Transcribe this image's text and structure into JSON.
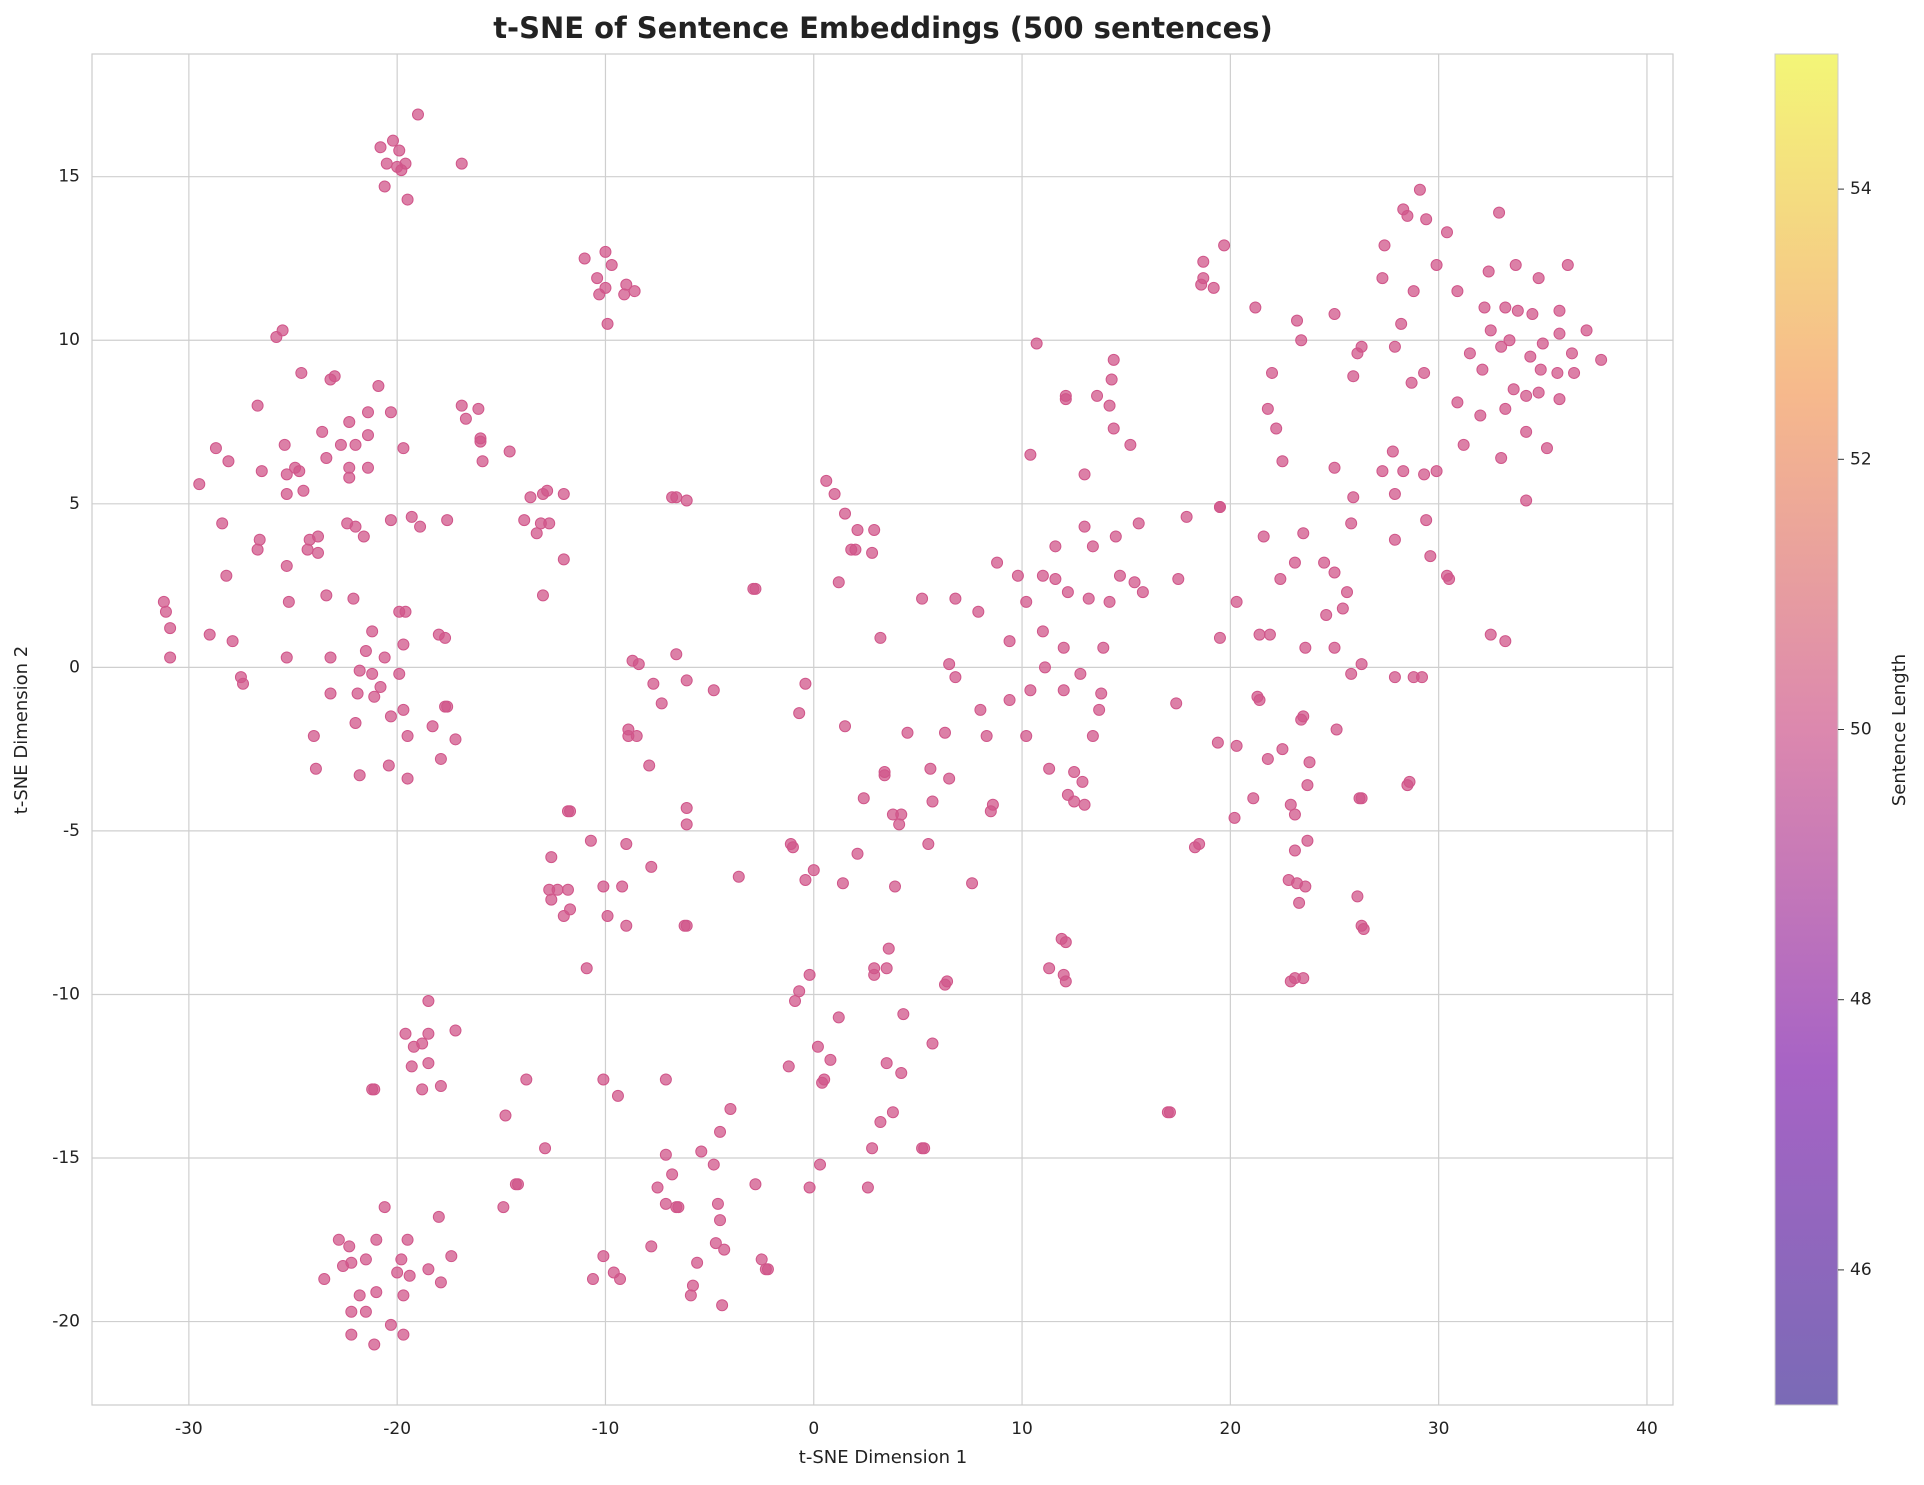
{
  "chart_data": {
    "type": "scatter",
    "title": "t-SNE of Sentence Embeddings (500 sentences)",
    "x_label": "t-SNE Dimension 1",
    "y_label": "t-SNE Dimension 2",
    "color": "#d0568a",
    "grid": true,
    "xlim": [
      -34.65,
      41.25
    ],
    "ylim": [
      -22.55,
      18.75
    ],
    "xticks": [
      -30,
      -20,
      -10,
      0,
      10,
      20,
      30,
      40
    ],
    "yticks": [
      -20,
      -15,
      -10,
      -5,
      0,
      5,
      10,
      15
    ],
    "colorbar": {
      "label": "Sentence Length",
      "lim": [
        45,
        55
      ],
      "ticks": [
        46,
        48,
        50,
        52,
        54
      ]
    },
    "x": [
      -20.8,
      -20.2,
      -19.0,
      -20.5,
      -19.9,
      -20.0,
      -19.6,
      -20.6,
      -19.5,
      -16.9,
      -19.8,
      -11.0,
      -10.4,
      -10.0,
      -9.7,
      -10.3,
      -10.0,
      -9.0,
      -9.1,
      -8.6,
      -9.9,
      -25.5,
      -25.8,
      -24.6,
      -23.0,
      -23.2,
      -20.9,
      -26.7,
      -20.3,
      -21.4,
      -22.3,
      -23.6,
      -21.4,
      -25.4,
      -22.7,
      -22.0,
      -19.7,
      -28.7,
      -28.1,
      -23.4,
      -22.3,
      -21.4,
      -26.5,
      -24.9,
      -24.7,
      -25.3,
      -22.3,
      -29.5,
      -24.5,
      -25.3,
      -19.3,
      -20.3,
      -17.6,
      -18.9,
      -22.4,
      -22.0,
      -28.4,
      -21.6,
      -23.8,
      -24.2,
      -26.6,
      -24.3,
      -26.7,
      -23.8,
      -25.3,
      -28.2,
      -23.4,
      -22.1,
      -25.2,
      -19.9,
      -19.6,
      -31.2,
      -31.1,
      -30.9,
      -29.0,
      -27.9,
      -21.2,
      -18.0,
      -17.7,
      -19.7,
      -21.5,
      -30.9,
      -25.3,
      -23.2,
      -20.6,
      -21.8,
      -21.2,
      -19.9,
      -27.5,
      -27.4,
      -20.8,
      -21.9,
      -21.1,
      -23.2,
      -19.7,
      -17.6,
      -17.7,
      -20.3,
      -22.0,
      -18.3,
      -24.0,
      -19.5,
      -17.2,
      -17.9,
      -20.4,
      -23.9,
      -21.8,
      -19.5,
      -16.9,
      -16.7,
      -16.1,
      -16.0,
      -16.0,
      -15.9,
      -14.6,
      -13.6,
      -13.0,
      -12.8,
      -12.0,
      -13.9,
      -13.1,
      -12.7,
      -13.3,
      -12.0,
      -13.0,
      -6.8,
      -6.6,
      -6.1,
      -2.8,
      -2.9,
      0.6,
      1.0,
      1.5,
      2.1,
      2.9,
      2.0,
      1.8,
      2.8,
      1.2,
      3.2,
      -8.7,
      -8.4,
      -6.6,
      -7.7,
      -6.1,
      -0.4,
      -4.8,
      -7.3,
      -0.7,
      1.5,
      -8.9,
      -8.5,
      -8.9,
      -7.9,
      3.4,
      3.4,
      2.4,
      -6.1,
      -11.8,
      -11.7,
      -6.1,
      3.8,
      4.2,
      4.1,
      -10.7,
      -9.0,
      -1.1,
      -1.0,
      -12.6,
      2.1,
      -7.8,
      0,
      -0.4,
      -3.6,
      1.4,
      -10.1,
      -9.2,
      -11.8,
      -12.7,
      -12.3,
      -12.6,
      3.9,
      -11.7,
      -12.0,
      -9.9,
      -9.0,
      -6.1,
      -6.2,
      -10.9,
      3.6,
      3.5,
      2.9,
      2.9,
      -0.2,
      -0.7,
      -0.9,
      1.2,
      4.3,
      5.7,
      0.2,
      0.8,
      -1.2,
      3.5,
      4.2,
      0.4,
      0.5,
      3.8,
      3.2,
      -4.0,
      -4.5,
      2.8,
      5.2,
      5.3,
      -5.4,
      -7.1,
      -4.8,
      0.3,
      -6.8,
      2.6,
      -0.2,
      -2.8,
      -7.5,
      -6.6,
      -6.5,
      -7.1,
      -4.6,
      -4.5,
      -7.8,
      -4.7,
      -4.3,
      -5.6,
      -2.5,
      -2.3,
      -2.2,
      -5.8,
      -5.9,
      -4.4,
      -9.6,
      -9.3,
      -10.6,
      -10.1,
      -10.1,
      -9.4,
      -7.1,
      -13.8,
      -14.8,
      -12.9,
      -14.3,
      -14.2,
      -14.9,
      -18.5,
      -19.6,
      -18.5,
      -17.2,
      -19.2,
      -18.8,
      -19.3,
      -18.5,
      -21.2,
      -21.1,
      -18.8,
      -17.9,
      -18.0,
      -20.6,
      -22.3,
      -22.8,
      -21.0,
      -19.5,
      -17.4,
      -19.8,
      -21.5,
      -22.6,
      -22.2,
      -18.5,
      -20.0,
      -19.4,
      -23.5,
      -17.9,
      -21.8,
      -19.7,
      -21.0,
      -22.2,
      -21.5,
      -20.3,
      -22.2,
      -19.7,
      -21.1,
      10.7,
      12.1,
      12.1,
      14.4,
      14.3,
      14.2,
      13.6,
      14.4,
      15.2,
      10.4,
      13.0,
      15.6,
      14.5,
      13.0,
      17.9,
      19.5,
      13.4,
      11.6,
      8.8,
      9.8,
      11.0,
      11.6,
      14.7,
      15.4,
      15.8,
      12.2,
      13.2,
      5.2,
      6.8,
      7.9,
      10.2,
      14.2,
      17.5,
      11.0,
      9.4,
      12.0,
      13.9,
      11.1,
      12.8,
      6.5,
      6.8,
      10.4,
      12.0,
      13.8,
      9.4,
      8.0,
      13.7,
      4.5,
      6.3,
      8.3,
      10.2,
      13.4,
      11.3,
      12.5,
      12.9,
      5.6,
      6.5,
      12.2,
      12.5,
      13.0,
      5.7,
      8.6,
      8.5,
      5.5,
      7.6,
      11.9,
      12.1,
      6.4,
      6.3,
      11.3,
      12.0,
      12.1,
      17.0,
      17.1,
      18.7,
      19.7,
      18.7,
      18.6,
      19.2,
      21.2,
      23.2,
      25.0,
      23.4,
      22.0,
      21.8,
      22.2,
      22.5,
      19.5,
      21.6,
      23.5,
      24.5,
      23.1,
      22.4,
      25.0,
      25.6,
      20.3,
      24.6,
      25.4,
      21.4,
      21.9,
      19.5,
      23.6,
      25.0,
      26.3,
      25.8,
      17.4,
      21.3,
      21.4,
      23.5,
      23.4,
      25.1,
      19.4,
      20.3,
      22.5,
      21.8,
      23.8,
      23.7,
      21.1,
      22.9,
      23.1,
      20.2,
      26.2,
      26.3,
      23.7,
      18.5,
      18.3,
      23.1,
      22.8,
      23.2,
      23.6,
      23.3,
      26.1,
      26.3,
      26.4,
      22.9,
      23.1,
      23.5,
      29.1,
      28.3,
      28.5,
      29.4,
      32.9,
      30.4,
      27.4,
      29.9,
      32.4,
      33.7,
      34.8,
      36.2,
      27.3,
      28.8,
      30.9,
      32.2,
      33.2,
      33.8,
      34.5,
      35.8,
      28.2,
      32.5,
      35.8,
      37.1,
      33.4,
      35.0,
      27.9,
      26.1,
      26.3,
      31.5,
      33.0,
      34.4,
      36.4,
      37.8,
      29.3,
      25.9,
      32.1,
      34.9,
      35.7,
      36.5,
      28.7,
      33.6,
      34.2,
      34.8,
      35.8,
      30.9,
      33.2,
      32.0,
      34.2,
      31.2,
      35.2,
      27.8,
      33.0,
      27.3,
      28.3,
      29.3,
      29.9,
      25.0,
      27.9,
      25.9,
      34.2,
      29.4,
      25.8,
      27.9,
      29.6,
      30.4,
      30.5,
      32.5,
      33.2,
      28.8,
      29.2,
      27.9,
      28.6,
      28.5
    ],
    "values": [
      15.9,
      16.1,
      16.9,
      15.4,
      15.8,
      15.3,
      15.4,
      14.7,
      14.3,
      15.4,
      15.2,
      12.5,
      11.9,
      12.7,
      12.3,
      11.4,
      11.6,
      11.7,
      11.4,
      11.5,
      10.5,
      10.3,
      10.1,
      9.0,
      8.9,
      8.8,
      8.6,
      8.0,
      7.8,
      7.8,
      7.5,
      7.2,
      7.1,
      6.8,
      6.8,
      6.8,
      6.7,
      6.7,
      6.3,
      6.4,
      6.1,
      6.1,
      6.0,
      6.1,
      6.0,
      5.9,
      5.8,
      5.6,
      5.4,
      5.3,
      4.6,
      4.5,
      4.5,
      4.3,
      4.4,
      4.3,
      4.4,
      4.0,
      4.0,
      3.9,
      3.9,
      3.6,
      3.6,
      3.5,
      3.1,
      2.8,
      2.2,
      2.1,
      2.0,
      1.7,
      1.7,
      2.0,
      1.7,
      1.2,
      1.0,
      0.8,
      1.1,
      1.0,
      0.9,
      0.7,
      0.5,
      0.3,
      0.3,
      0.3,
      0.3,
      -0.1,
      -0.2,
      -0.2,
      -0.3,
      -0.5,
      -0.6,
      -0.8,
      -0.9,
      -0.8,
      -1.3,
      -1.2,
      -1.2,
      -1.5,
      -1.7,
      -1.8,
      -2.1,
      -2.1,
      -2.2,
      -2.8,
      -3.0,
      -3.1,
      -3.3,
      -3.4,
      8.0,
      7.6,
      7.9,
      7.0,
      6.9,
      6.3,
      6.6,
      5.2,
      5.3,
      5.4,
      5.3,
      4.5,
      4.4,
      4.4,
      4.1,
      3.3,
      2.2,
      5.2,
      5.2,
      5.1,
      2.4,
      2.4,
      5.7,
      5.3,
      4.7,
      4.2,
      4.2,
      3.6,
      3.6,
      3.5,
      2.6,
      0.9,
      0.2,
      0.1,
      0.4,
      -0.5,
      -0.4,
      -0.5,
      -0.7,
      -1.1,
      -1.4,
      -1.8,
      -1.9,
      -2.1,
      -2.1,
      -3.0,
      -3.3,
      -3.2,
      -4.0,
      -4.3,
      -4.4,
      -4.4,
      -4.8,
      -4.5,
      -4.5,
      -4.8,
      -5.3,
      -5.4,
      -5.4,
      -5.5,
      -5.8,
      -5.7,
      -6.1,
      -6.2,
      -6.5,
      -6.4,
      -6.6,
      -6.7,
      -6.7,
      -6.8,
      -6.8,
      -6.8,
      -7.1,
      -6.7,
      -7.4,
      -7.6,
      -7.6,
      -7.9,
      -7.9,
      -7.9,
      -9.2,
      -8.6,
      -9.2,
      -9.2,
      -9.4,
      -9.4,
      -9.9,
      -10.2,
      -10.7,
      -10.6,
      -11.5,
      -11.6,
      -12.0,
      -12.2,
      -12.1,
      -12.4,
      -12.7,
      -12.6,
      -13.6,
      -13.9,
      -13.5,
      -14.2,
      -14.7,
      -14.7,
      -14.7,
      -14.8,
      -14.9,
      -15.2,
      -15.2,
      -15.5,
      -15.9,
      -15.9,
      -15.8,
      -15.9,
      -16.5,
      -16.5,
      -16.4,
      -16.4,
      -16.9,
      -17.7,
      -17.6,
      -17.8,
      -18.2,
      -18.1,
      -18.4,
      -18.4,
      -18.9,
      -19.2,
      -19.5,
      -18.5,
      -18.7,
      -18.7,
      -18.0,
      -12.6,
      -13.1,
      -12.6,
      -12.6,
      -13.7,
      -14.7,
      -15.8,
      -15.8,
      -16.5,
      -10.2,
      -11.2,
      -11.2,
      -11.1,
      -11.6,
      -11.5,
      -12.2,
      -12.1,
      -12.9,
      -12.9,
      -12.9,
      -12.8,
      -16.8,
      -16.5,
      -17.7,
      -17.5,
      -17.5,
      -17.5,
      -18.0,
      -18.1,
      -18.1,
      -18.3,
      -18.2,
      -18.4,
      -18.5,
      -18.6,
      -18.7,
      -18.8,
      -19.2,
      -19.2,
      -19.1,
      -19.7,
      -19.7,
      -20.1,
      -20.4,
      -20.4,
      -20.7,
      9.9,
      8.3,
      8.2,
      9.4,
      8.8,
      8.0,
      8.3,
      7.3,
      6.8,
      6.5,
      5.9,
      4.4,
      4.0,
      4.3,
      4.6,
      4.9,
      3.7,
      3.7,
      3.2,
      2.8,
      2.8,
      2.7,
      2.8,
      2.6,
      2.3,
      2.3,
      2.1,
      2.1,
      2.1,
      1.7,
      2.0,
      2.0,
      2.7,
      1.1,
      0.8,
      0.6,
      0.6,
      0.0,
      -0.2,
      0.1,
      -0.3,
      -0.7,
      -0.7,
      -0.8,
      -1.0,
      -1.3,
      -1.3,
      -2.0,
      -2.0,
      -2.1,
      -2.1,
      -2.1,
      -3.1,
      -3.2,
      -3.5,
      -3.1,
      -3.4,
      -3.9,
      -4.1,
      -4.2,
      -4.1,
      -4.2,
      -4.4,
      -5.4,
      -6.6,
      -8.3,
      -8.4,
      -9.6,
      -9.7,
      -9.2,
      -9.4,
      -9.6,
      -13.6,
      -13.6,
      12.4,
      12.9,
      11.9,
      11.7,
      11.6,
      11.0,
      10.6,
      10.8,
      10.0,
      9.0,
      7.9,
      7.3,
      6.3,
      4.9,
      4.0,
      4.1,
      3.2,
      3.2,
      2.7,
      2.9,
      2.3,
      2.0,
      1.6,
      1.8,
      1.0,
      1.0,
      0.9,
      0.6,
      0.6,
      0.1,
      -0.2,
      -1.1,
      -0.9,
      -1.0,
      -1.5,
      -1.6,
      -1.9,
      -2.3,
      -2.4,
      -2.5,
      -2.8,
      -2.9,
      -3.6,
      -4.0,
      -4.2,
      -4.5,
      -4.6,
      -4.0,
      -4.0,
      -5.3,
      -5.4,
      -5.5,
      -5.6,
      -6.5,
      -6.6,
      -6.7,
      -7.2,
      -7.0,
      -7.9,
      -8.0,
      -9.6,
      -9.5,
      -9.5,
      14.6,
      14.0,
      13.8,
      13.7,
      13.9,
      13.3,
      12.9,
      12.3,
      12.1,
      12.3,
      11.9,
      12.3,
      11.9,
      11.5,
      11.5,
      11.0,
      11.0,
      10.9,
      10.8,
      10.9,
      10.5,
      10.3,
      10.2,
      10.3,
      10.0,
      9.9,
      9.8,
      9.6,
      9.8,
      9.6,
      9.8,
      9.5,
      9.6,
      9.4,
      9.0,
      8.9,
      9.1,
      9.1,
      9.0,
      9.0,
      8.7,
      8.5,
      8.3,
      8.4,
      8.2,
      8.1,
      7.9,
      7.7,
      7.2,
      6.8,
      6.7,
      6.6,
      6.4,
      6.0,
      6.0,
      5.9,
      6.0,
      6.1,
      5.3,
      5.2,
      5.1,
      4.5,
      4.4,
      3.9,
      3.4,
      2.8,
      2.7,
      1.0,
      0.8,
      -0.3,
      -0.3,
      -0.3,
      -3.5,
      -3.6
    ]
  }
}
